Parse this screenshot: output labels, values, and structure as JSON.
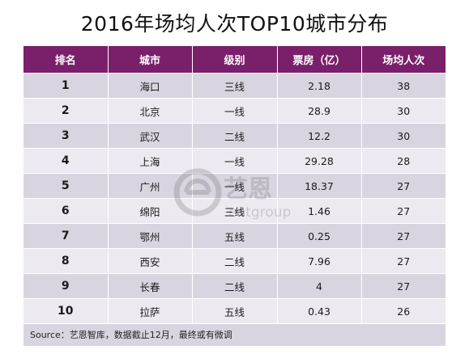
{
  "title": "2016年场均人次TOP10城市分布",
  "columns": [
    "排名",
    "城市",
    "级别",
    "票房（亿）",
    "场均人次"
  ],
  "rows": [
    {
      "rank": "1",
      "city": "海口",
      "tier": "三线",
      "box_office": "2.18",
      "avg_attendance": "38"
    },
    {
      "rank": "2",
      "city": "北京",
      "tier": "一线",
      "box_office": "28.9",
      "avg_attendance": "30"
    },
    {
      "rank": "3",
      "city": "武汉",
      "tier": "二线",
      "box_office": "12.2",
      "avg_attendance": "30"
    },
    {
      "rank": "4",
      "city": "上海",
      "tier": "一线",
      "box_office": "29.28",
      "avg_attendance": "28"
    },
    {
      "rank": "5",
      "city": "广州",
      "tier": "一线",
      "box_office": "18.37",
      "avg_attendance": "27"
    },
    {
      "rank": "6",
      "city": "绵阳",
      "tier": "三线",
      "box_office": "1.46",
      "avg_attendance": "27"
    },
    {
      "rank": "7",
      "city": "鄂州",
      "tier": "五线",
      "box_office": "0.25",
      "avg_attendance": "27"
    },
    {
      "rank": "8",
      "city": "西安",
      "tier": "二线",
      "box_office": "7.96",
      "avg_attendance": "27"
    },
    {
      "rank": "9",
      "city": "长春",
      "tier": "二线",
      "box_office": "4",
      "avg_attendance": "27"
    },
    {
      "rank": "10",
      "city": "拉萨",
      "tier": "五线",
      "box_office": "0.43",
      "avg_attendance": "26"
    }
  ],
  "source": "Source：艺恩智库，数据截止12月，最终或有微调",
  "watermark": {
    "name": "艺恩",
    "sub": "entgroup"
  },
  "colors": {
    "header": "#7a1f6a",
    "row_odd": "#d9d5e0",
    "row_even": "#ece9f0"
  }
}
